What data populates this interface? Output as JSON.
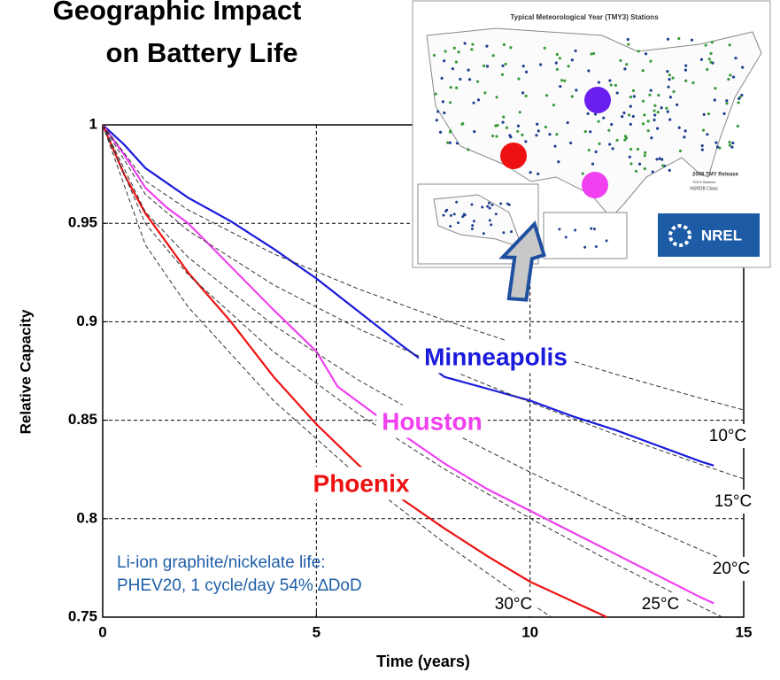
{
  "chart_data": {
    "type": "line",
    "title": [
      "Geographic Impact",
      "on Battery Life"
    ],
    "xlabel": "Time (years)",
    "ylabel": "Relative Capacity",
    "xlim": [
      0,
      15
    ],
    "xticks": [
      0,
      5,
      10,
      15
    ],
    "ylim": [
      0.75,
      1
    ],
    "yticks": [
      0.75,
      0.8,
      0.85,
      0.9,
      0.95,
      1
    ],
    "grid": true,
    "annotation": [
      "Li-ion graphite/nickelate life:",
      "PHEV20, 1 cycle/day 54% ∆DoD"
    ],
    "series": [
      {
        "name": "Minneapolis",
        "color": "#1a1adc",
        "style": "solid",
        "x": [
          0,
          0.5,
          1,
          2,
          3,
          4,
          5,
          6,
          7,
          8,
          9,
          10,
          11,
          12,
          13,
          14,
          14.3
        ],
        "values": [
          1,
          0.99,
          0.978,
          0.963,
          0.951,
          0.937,
          0.922,
          0.905,
          0.888,
          0.872,
          0.866,
          0.86,
          0.852,
          0.845,
          0.837,
          0.829,
          0.827
        ]
      },
      {
        "name": "Houston",
        "color": "#f040f0",
        "style": "solid",
        "x": [
          0,
          0.5,
          1,
          1.5,
          2,
          3,
          4,
          5,
          5.5,
          7,
          8,
          9,
          10,
          11,
          12,
          13,
          14,
          14.3
        ],
        "values": [
          1,
          0.985,
          0.968,
          0.958,
          0.95,
          0.928,
          0.906,
          0.885,
          0.867,
          0.843,
          0.828,
          0.815,
          0.804,
          0.793,
          0.782,
          0.771,
          0.76,
          0.757
        ]
      },
      {
        "name": "Phoenix",
        "color": "#ee1111",
        "style": "solid",
        "x": [
          0,
          0.5,
          1,
          1.5,
          2,
          3,
          4,
          5,
          6,
          7,
          8,
          9,
          10,
          11,
          11.8
        ],
        "values": [
          1,
          0.975,
          0.955,
          0.94,
          0.925,
          0.9,
          0.872,
          0.848,
          0.827,
          0.81,
          0.795,
          0.781,
          0.768,
          0.758,
          0.75
        ]
      },
      {
        "name": "10°C",
        "color": "#333333",
        "style": "dashed",
        "x": [
          0,
          1,
          2,
          4,
          6,
          8,
          10,
          12,
          14,
          15
        ],
        "values": [
          1,
          0.9715,
          0.9568,
          0.9345,
          0.9165,
          0.9008,
          0.8865,
          0.8734,
          0.8611,
          0.8552
        ]
      },
      {
        "name": "15°C",
        "color": "#333333",
        "style": "dashed",
        "x": [
          0,
          1,
          2,
          4,
          6,
          8,
          10,
          12,
          14,
          15
        ],
        "values": [
          1,
          0.9646,
          0.9463,
          0.9187,
          0.8963,
          0.8767,
          0.8591,
          0.8427,
          0.8275,
          0.8202
        ]
      },
      {
        "name": "20°C",
        "color": "#333333",
        "style": "dashed",
        "x": [
          0,
          1,
          2,
          4,
          6,
          8,
          10,
          12,
          14,
          15
        ],
        "values": [
          1,
          0.9557,
          0.9328,
          0.8982,
          0.8702,
          0.8457,
          0.8236,
          0.8032,
          0.7841,
          0.775
        ]
      },
      {
        "name": "25°C",
        "color": "#333333",
        "style": "dashed",
        "x": [
          0,
          1,
          2,
          4,
          6,
          8,
          10,
          12,
          14,
          14.5
        ],
        "values": [
          1,
          0.9498,
          0.9239,
          0.8847,
          0.8529,
          0.8252,
          0.8002,
          0.777,
          0.7553,
          0.75
        ]
      },
      {
        "name": "30°C",
        "color": "#333333",
        "style": "dashed",
        "x": [
          0,
          1,
          2,
          4,
          6,
          8,
          10,
          10.5
        ],
        "values": [
          1,
          0.939,
          0.9075,
          0.8599,
          0.8213,
          0.7876,
          0.7572,
          0.75
        ]
      }
    ]
  },
  "inset": {
    "title": "Typical Meteorological Year (TMY3) Stations",
    "legend": [
      "2008 TMY Release",
      "TMY3 Stations",
      "NSRDB Class"
    ],
    "logo": "NREL"
  }
}
